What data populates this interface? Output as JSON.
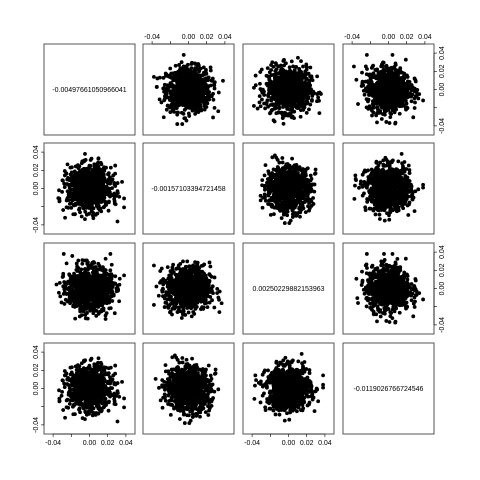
{
  "chart_data": {
    "type": "scatter",
    "subtype": "pairs-matrix",
    "grid": false,
    "n_vars": 4,
    "axis_range": [
      -0.05,
      0.05
    ],
    "diagonal_labels": [
      "-0.00497661050966041",
      "-0.00157103394721458",
      "0.00250229882153963",
      "-0.0119026766724546"
    ],
    "tick_values": [
      -0.04,
      -0.02,
      0.0,
      0.02,
      0.04
    ],
    "tick_labels_horizontal": [
      "-0.04",
      "",
      "0.00",
      "0.02",
      "0.04"
    ],
    "tick_labels_vertical": [
      "-0.04",
      "",
      "0.00",
      "0.02",
      "0.04"
    ],
    "cloud_center": [
      0.0,
      0.0
    ],
    "cloud_spread_sd": 0.012,
    "cloud_extent": 0.038,
    "points_per_panel": 900,
    "point_color": "#000000"
  }
}
